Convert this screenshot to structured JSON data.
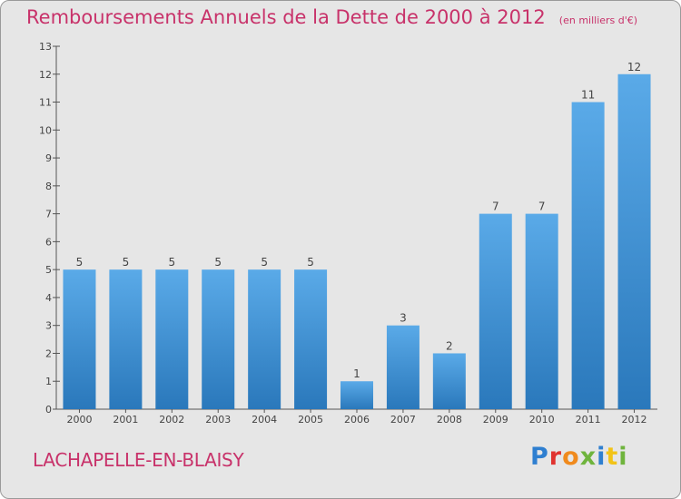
{
  "header": {
    "title": "Remboursements Annuels de la Dette de 2000 à 2012",
    "unit": "(en milliers d'€)"
  },
  "footer": {
    "commune": "LACHAPELLE-EN-BLAISY",
    "logo_text": "Proxiti"
  },
  "colors": {
    "title": "#c8326a",
    "bar_top": "#5aaae8",
    "bar_bottom": "#2a78bb",
    "background": "#e6e6e6"
  },
  "chart_data": {
    "type": "bar",
    "categories": [
      "2000",
      "2001",
      "2002",
      "2003",
      "2004",
      "2005",
      "2006",
      "2007",
      "2008",
      "2009",
      "2010",
      "2011",
      "2012"
    ],
    "values": [
      5,
      5,
      5,
      5,
      5,
      5,
      1,
      3,
      2,
      7,
      7,
      11,
      12
    ],
    "data_labels": [
      "5",
      "5",
      "5",
      "5",
      "5",
      "5",
      "1",
      "3",
      "2",
      "7",
      "7",
      "11",
      "12"
    ],
    "title": "Remboursements Annuels de la Dette de 2000 à 2012",
    "unit": "(en milliers d'€)",
    "xlabel": "",
    "ylabel": "",
    "ylim": [
      0,
      13
    ],
    "yticks": [
      "0",
      "1",
      "2",
      "3",
      "4",
      "5",
      "6",
      "7",
      "8",
      "9",
      "10",
      "11",
      "12",
      "13"
    ],
    "grid": false,
    "legend": "none"
  }
}
